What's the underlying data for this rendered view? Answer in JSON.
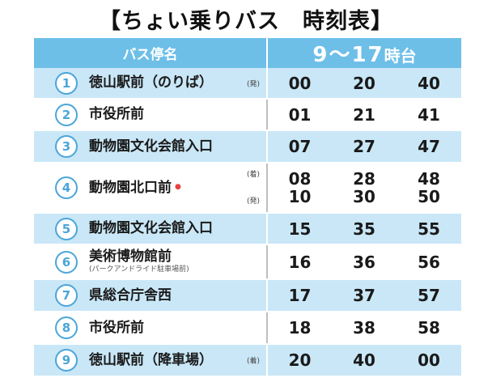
{
  "title": "【ちょい乗りバス　時刻表】",
  "header": {
    "stop_col": "バス停名",
    "time_col_range": "9～17",
    "time_col_suffix": "時台"
  },
  "rows": [
    {
      "num": "1",
      "name": "徳山駅前（のりば）",
      "sub": "",
      "mark": "",
      "badges": [
        "(発)"
      ],
      "times": [
        [
          "00"
        ],
        [
          "20"
        ],
        [
          "40"
        ]
      ]
    },
    {
      "num": "2",
      "name": "市役所前",
      "sub": "",
      "mark": "",
      "badges": [],
      "times": [
        [
          "01"
        ],
        [
          "21"
        ],
        [
          "41"
        ]
      ]
    },
    {
      "num": "3",
      "name": "動物園文化会館入口",
      "sub": "",
      "mark": "",
      "badges": [],
      "times": [
        [
          "07"
        ],
        [
          "27"
        ],
        [
          "47"
        ]
      ]
    },
    {
      "num": "4",
      "name": "動物園北口前",
      "sub": "",
      "mark": "●",
      "badges": [
        "(着)",
        "(発)"
      ],
      "times": [
        [
          "08",
          "10"
        ],
        [
          "28",
          "30"
        ],
        [
          "48",
          "50"
        ]
      ]
    },
    {
      "num": "5",
      "name": "動物園文化会館入口",
      "sub": "",
      "mark": "",
      "badges": [],
      "times": [
        [
          "15"
        ],
        [
          "35"
        ],
        [
          "55"
        ]
      ]
    },
    {
      "num": "6",
      "name": "美術博物館前",
      "sub": "(パークアンドライド駐車場前)",
      "mark": "",
      "badges": [],
      "times": [
        [
          "16"
        ],
        [
          "36"
        ],
        [
          "56"
        ]
      ]
    },
    {
      "num": "7",
      "name": "県総合庁舎西",
      "sub": "",
      "mark": "",
      "badges": [],
      "times": [
        [
          "17"
        ],
        [
          "37"
        ],
        [
          "57"
        ]
      ]
    },
    {
      "num": "8",
      "name": "市役所前",
      "sub": "",
      "mark": "",
      "badges": [],
      "times": [
        [
          "18"
        ],
        [
          "38"
        ],
        [
          "58"
        ]
      ]
    },
    {
      "num": "9",
      "name": "徳山駅前（降車場）",
      "sub": "",
      "mark": "",
      "badges": [
        "(着)"
      ],
      "times": [
        [
          "20"
        ],
        [
          "40"
        ],
        [
          "00"
        ]
      ]
    }
  ]
}
